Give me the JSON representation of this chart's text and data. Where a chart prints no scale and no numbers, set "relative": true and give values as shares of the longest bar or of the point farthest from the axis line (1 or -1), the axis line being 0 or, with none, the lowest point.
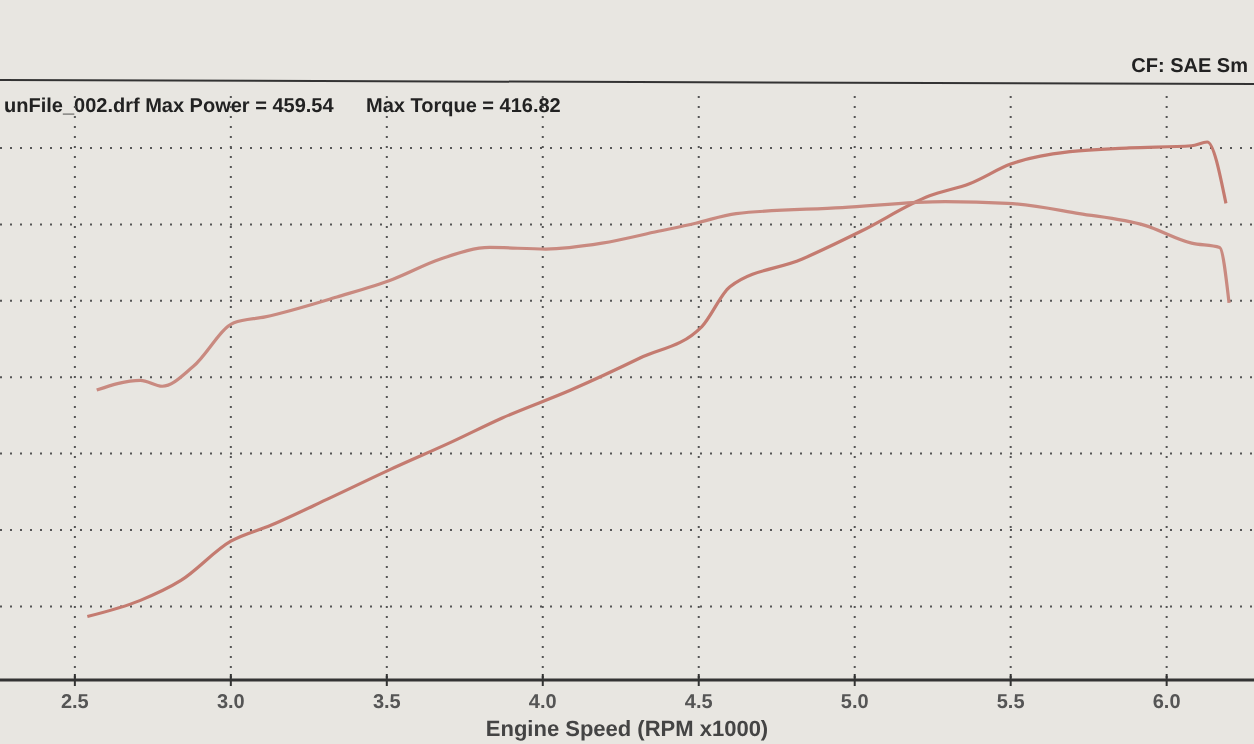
{
  "chart_data": {
    "type": "line",
    "relative": true,
    "xlabel": "Engine Speed (RPM x1000)",
    "annotations": [
      "unFile_002.drf Max Power = 459.54",
      "Max Torque = 416.82",
      "CF: SAE Sm"
    ],
    "xlim": [
      2.26,
      6.28
    ],
    "xticks": [
      2.5,
      {
        "value": 3,
        "label": "3.0"
      },
      3.5,
      {
        "value": 4,
        "label": "4.0"
      },
      4.5,
      {
        "value": 5,
        "label": "5.0"
      },
      5.5,
      {
        "value": 6,
        "label": "6.0"
      }
    ],
    "grid": true,
    "series": [
      {
        "color": "#c47b70",
        "x": [
          2.54,
          2.71,
          2.84,
          3.0,
          3.13,
          3.32,
          3.51,
          3.71,
          3.87,
          4.09,
          4.31,
          4.51,
          4.6,
          4.83,
          5.02,
          5.24,
          5.37,
          5.5,
          5.69,
          5.88,
          6.08,
          6.13,
          6.19
        ],
        "values": [
          0.118,
          0.148,
          0.185,
          0.258,
          0.288,
          0.339,
          0.391,
          0.443,
          0.487,
          0.539,
          0.598,
          0.657,
          0.731,
          0.782,
          0.834,
          0.9,
          0.923,
          0.959,
          0.982,
          0.989,
          0.993,
          1,
          0.886
        ]
      },
      {
        "color": "#c98a80",
        "x": [
          2.57,
          2.71,
          2.78,
          2.88,
          3.01,
          3.11,
          3.34,
          3.52,
          3.67,
          3.83,
          4.01,
          4.19,
          4.37,
          4.49,
          4.62,
          4.96,
          5.29,
          5.49,
          5.72,
          5.93,
          6.08,
          6.17,
          6.2
        ],
        "values": [
          0.539,
          0.557,
          0.546,
          0.583,
          0.664,
          0.675,
          0.712,
          0.745,
          0.782,
          0.804,
          0.801,
          0.812,
          0.834,
          0.849,
          0.867,
          0.878,
          0.889,
          0.886,
          0.867,
          0.845,
          0.812,
          0.804,
          0.701
        ]
      }
    ]
  }
}
